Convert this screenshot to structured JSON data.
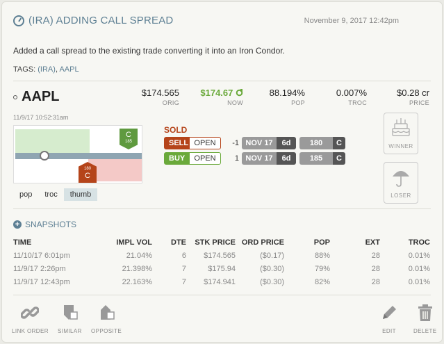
{
  "header": {
    "title": "(IRA) ADDING CALL SPREAD",
    "date": "November 9, 2017 12:42pm"
  },
  "description": "Added a call spread to the existing trade converting it into an Iron Condor.",
  "tags": {
    "label": "TAGS:",
    "items": [
      "(IRA)",
      "AAPL"
    ]
  },
  "trade": {
    "symbol": "AAPL",
    "timestamp": "11/9/17 10:52:31am",
    "metrics": [
      {
        "value": "$174.565",
        "label": "ORIG"
      },
      {
        "value": "$174.67",
        "label": "NOW"
      },
      {
        "value": "88.194%",
        "label": "POP"
      },
      {
        "value": "0.007%",
        "label": "TROC"
      },
      {
        "value": "$0.28 cr",
        "label": "PRICE"
      }
    ]
  },
  "thumb": {
    "call_pin": {
      "type": "C",
      "strike": "185"
    },
    "put_pin": {
      "type": "C",
      "strike": "180"
    },
    "tabs": [
      "pop",
      "troc",
      "thumb"
    ],
    "active_tab": "thumb"
  },
  "order": {
    "status": "SOLD",
    "legs": [
      {
        "action": "SELL",
        "open_close": "OPEN",
        "qty": "-1",
        "expiry": "NOV 17",
        "dte": "6d",
        "strike": "180",
        "type": "C"
      },
      {
        "action": "BUY",
        "open_close": "OPEN",
        "qty": "1",
        "expiry": "NOV 17",
        "dte": "6d",
        "strike": "185",
        "type": "C"
      }
    ]
  },
  "side_buttons": {
    "winner": "WINNER",
    "loser": "LOSER"
  },
  "snapshots": {
    "title": "SNAPSHOTS",
    "columns": [
      "TIME",
      "IMPL VOL",
      "DTE",
      "STK PRICE",
      "ORD PRICE",
      "POP",
      "EXT",
      "TROC"
    ],
    "rows": [
      [
        "11/10/17 6:01pm",
        "21.04%",
        "6",
        "$174.565",
        "($0.17)",
        "88%",
        "28",
        "0.01%"
      ],
      [
        "11/9/17 2:26pm",
        "21.398%",
        "7",
        "$175.94",
        "($0.30)",
        "79%",
        "28",
        "0.01%"
      ],
      [
        "11/9/17 12:43pm",
        "22.163%",
        "7",
        "$174.941",
        "($0.30)",
        "82%",
        "28",
        "0.01%"
      ]
    ]
  },
  "footer": {
    "link_order": "LINK ORDER",
    "similar": "SIMILAR",
    "opposite": "OPPOSITE",
    "edit": "EDIT",
    "delete": "DELETE"
  },
  "colors": {
    "accent": "#5d7f93",
    "sell": "#b5441a",
    "buy": "#6aa93a"
  }
}
